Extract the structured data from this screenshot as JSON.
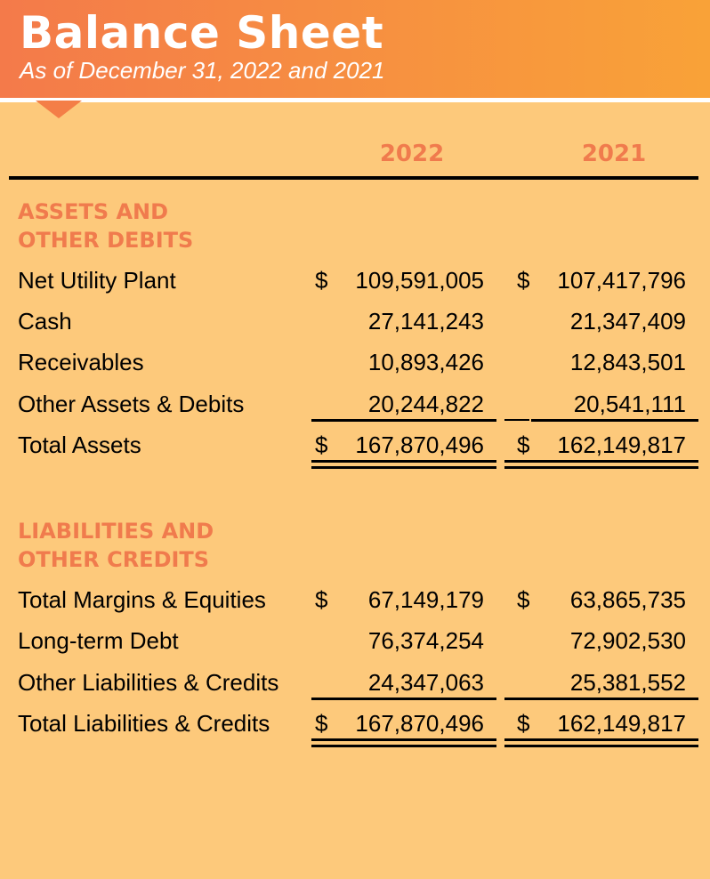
{
  "header": {
    "title": "Balance Sheet",
    "subtitle": "As of December 31, 2022 and 2021"
  },
  "columns": [
    "2022",
    "2021"
  ],
  "currency_symbol": "$",
  "assets": {
    "heading_line1": "ASSETS AND",
    "heading_line2": "OTHER DEBITS",
    "rows": [
      {
        "label": "Net Utility Plant",
        "y2022": "109,591,005",
        "y2021": "107,417,796"
      },
      {
        "label": "Cash",
        "y2022": "27,141,243",
        "y2021": "21,347,409"
      },
      {
        "label": "Receivables",
        "y2022": "10,893,426",
        "y2021": "12,843,501"
      },
      {
        "label": "Other Assets & Debits",
        "y2022": "20,244,822",
        "y2021": "20,541,111"
      }
    ],
    "total": {
      "label": "Total Assets",
      "y2022": "167,870,496",
      "y2021": "162,149,817"
    }
  },
  "liabilities": {
    "heading_line1": "LIABILITIES AND",
    "heading_line2": "OTHER CREDITS",
    "rows": [
      {
        "label": "Total Margins & Equities",
        "y2022": "67,149,179",
        "y2021": "63,865,735"
      },
      {
        "label": "Long-term Debt",
        "y2022": "76,374,254",
        "y2021": "72,902,530"
      },
      {
        "label": "Other Liabilities & Credits",
        "y2022": "24,347,063",
        "y2021": "25,381,552"
      }
    ],
    "total": {
      "label": "Total Liabilities & Credits",
      "y2022": "167,870,496",
      "y2021": "162,149,817"
    }
  },
  "colors": {
    "background": "#fdc97b",
    "header_start": "#f47a4a",
    "header_end": "#f9a238",
    "accent_text": "#f07b4d"
  }
}
